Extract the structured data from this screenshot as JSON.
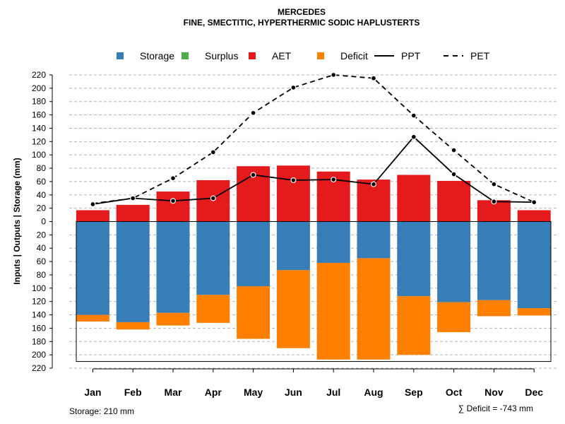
{
  "chart_data": {
    "type": "bar",
    "title": "MERCEDES",
    "subtitle": "FINE, SMECTITIC, HYPERTHERMIC SODIC HAPLUSTERTS",
    "ylabel": "Inputs | Outputs | Storage    (mm)",
    "ylim": [
      -220,
      220
    ],
    "ytick_step": 20,
    "categories": [
      "Jan",
      "Feb",
      "Mar",
      "Apr",
      "May",
      "Jun",
      "Jul",
      "Aug",
      "Sep",
      "Oct",
      "Nov",
      "Dec"
    ],
    "legend": [
      {
        "name": "Storage",
        "kind": "box",
        "color": "#377EB8"
      },
      {
        "name": "Surplus",
        "kind": "box",
        "color": "#4DAF4A"
      },
      {
        "name": "AET",
        "kind": "box",
        "color": "#E41A1C"
      },
      {
        "name": "Deficit",
        "kind": "box",
        "color": "#FF7F00"
      },
      {
        "name": "PPT",
        "kind": "solid",
        "color": "#000000"
      },
      {
        "name": "PET",
        "kind": "dashed",
        "color": "#000000"
      }
    ],
    "series": [
      {
        "name": "AET",
        "values": [
          17,
          25,
          45,
          62,
          83,
          84,
          75,
          63,
          70,
          61,
          32,
          17
        ]
      },
      {
        "name": "Storage",
        "values": [
          140,
          151,
          137,
          110,
          97,
          73,
          62,
          55,
          112,
          121,
          118,
          130
        ]
      },
      {
        "name": "Deficit",
        "values": [
          10,
          11,
          19,
          42,
          79,
          117,
          145,
          152,
          88,
          45,
          24,
          11
        ]
      },
      {
        "name": "PPT",
        "values": [
          26,
          35,
          31,
          35,
          70,
          62,
          63,
          56,
          127,
          71,
          30,
          29
        ]
      },
      {
        "name": "PET",
        "values": [
          27,
          35,
          65,
          104,
          163,
          201,
          220,
          215,
          159,
          107,
          56,
          29
        ]
      }
    ],
    "storage_capacity": 210,
    "storage_label": "Storage: 210 mm",
    "deficit_label": "∑ Deficit = -743 mm"
  }
}
